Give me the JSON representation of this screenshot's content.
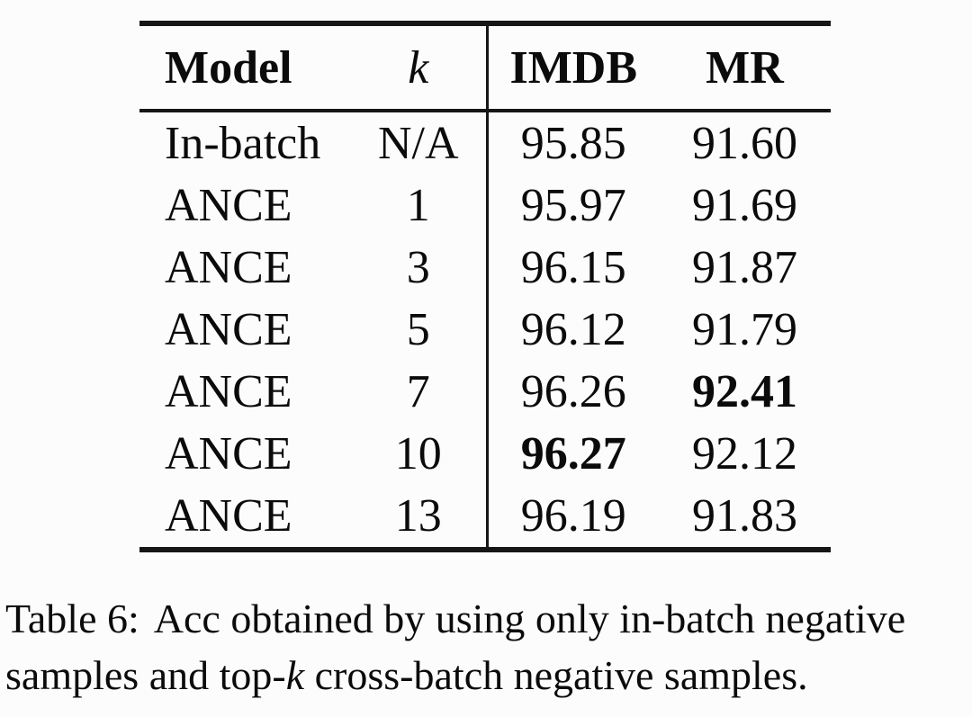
{
  "table": {
    "headers": {
      "model": "Model",
      "k": "k",
      "imdb": "IMDB",
      "mr": "MR"
    },
    "rows": [
      {
        "model": "In-batch",
        "k": "N/A",
        "imdb": "95.85",
        "mr": "91.60"
      },
      {
        "model": "ANCE",
        "k": "1",
        "imdb": "95.97",
        "mr": "91.69"
      },
      {
        "model": "ANCE",
        "k": "3",
        "imdb": "96.15",
        "mr": "91.87"
      },
      {
        "model": "ANCE",
        "k": "5",
        "imdb": "96.12",
        "mr": "91.79"
      },
      {
        "model": "ANCE",
        "k": "7",
        "imdb": "96.26",
        "mr": "92.41"
      },
      {
        "model": "ANCE",
        "k": "10",
        "imdb": "96.27",
        "mr": "92.12"
      },
      {
        "model": "ANCE",
        "k": "13",
        "imdb": "96.19",
        "mr": "91.83"
      }
    ],
    "bold_cells": [
      {
        "row": 4,
        "column": "mr"
      },
      {
        "row": 5,
        "column": "imdb"
      }
    ]
  },
  "caption": {
    "label": "Table 6:",
    "line1_rest": "Acc obtained by using only in-batch negative",
    "line2_before_k": "samples and top-",
    "k_symbol": "k",
    "line2_after_k": " cross-batch negative samples."
  }
}
